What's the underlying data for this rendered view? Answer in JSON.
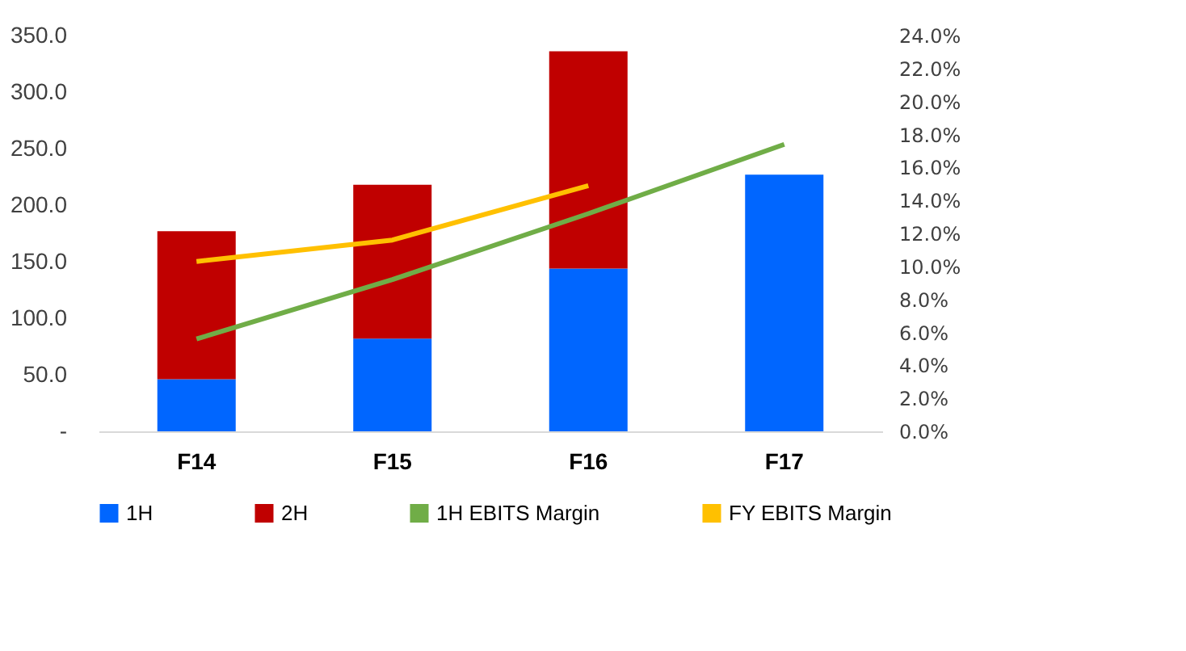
{
  "chart_data": {
    "type": "bar",
    "stacked": true,
    "categories": [
      "F14",
      "F15",
      "F16",
      "F17"
    ],
    "series": [
      {
        "name": "1H",
        "color": "#0066ff",
        "values": [
          46,
          82,
          144,
          227
        ]
      },
      {
        "name": "2H",
        "color": "#c00000",
        "values": [
          131,
          136,
          192,
          null
        ]
      },
      {
        "name": "1H EBITS Margin",
        "type": "line",
        "axis": "y2",
        "color": "#70ad47",
        "values": [
          5.6,
          9.2,
          13.2,
          17.4
        ]
      },
      {
        "name": "FY EBITS Margin",
        "type": "line",
        "axis": "y2",
        "color": "#ffc000",
        "values": [
          10.3,
          11.6,
          14.9,
          null
        ]
      }
    ],
    "ylim": [
      0,
      350
    ],
    "yticks": [
      {
        "value": 0,
        "label": "-"
      },
      {
        "value": 50,
        "label": "50.0"
      },
      {
        "value": 100,
        "label": "100.0"
      },
      {
        "value": 150,
        "label": "150.0"
      },
      {
        "value": 200,
        "label": "200.0"
      },
      {
        "value": 250,
        "label": "250.0"
      },
      {
        "value": 300,
        "label": "300.0"
      },
      {
        "value": 350,
        "label": "350.0"
      }
    ],
    "y2lim": [
      0,
      24
    ],
    "y2ticks": [
      {
        "value": 0,
        "label": "0.0%"
      },
      {
        "value": 2,
        "label": "2.0%"
      },
      {
        "value": 4,
        "label": "4.0%"
      },
      {
        "value": 6,
        "label": "6.0%"
      },
      {
        "value": 8,
        "label": "8.0%"
      },
      {
        "value": 10,
        "label": "10.0%"
      },
      {
        "value": 12,
        "label": "12.0%"
      },
      {
        "value": 14,
        "label": "14.0%"
      },
      {
        "value": 16,
        "label": "16.0%"
      },
      {
        "value": 18,
        "label": "18.0%"
      },
      {
        "value": 20,
        "label": "20.0%"
      },
      {
        "value": 22,
        "label": "22.0%"
      },
      {
        "value": 24,
        "label": "24.0%"
      }
    ],
    "grid": false,
    "legend": "bottom",
    "marker": "none",
    "line_style": "solid"
  }
}
